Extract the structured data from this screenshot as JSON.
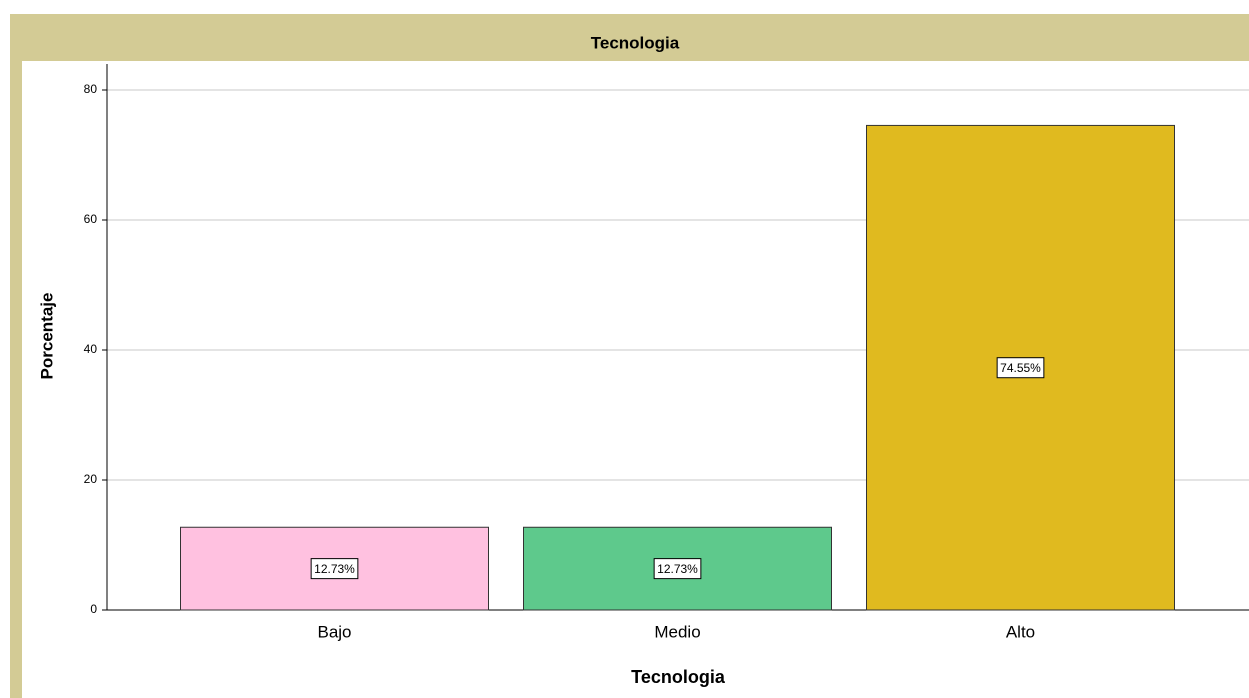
{
  "chart_data": {
    "type": "bar",
    "title": "Tecnologia",
    "x_label": "Tecnologia",
    "y_label": "Porcentaje",
    "categories": [
      "Bajo",
      "Medio",
      "Alto"
    ],
    "values": [
      12.73,
      12.73,
      74.55
    ],
    "value_labels": [
      "12.73%",
      "12.73%",
      "74.55%"
    ],
    "colors": [
      "#ffc1e0",
      "#5ec98c",
      "#e0ba1f"
    ],
    "ylim": [
      0,
      84
    ],
    "yticks": [
      0,
      20,
      40,
      60,
      80
    ],
    "grid": true
  }
}
